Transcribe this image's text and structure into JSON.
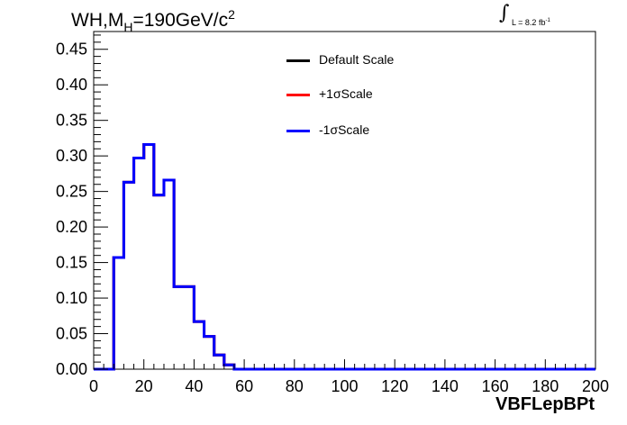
{
  "title": {
    "main": "WH,M",
    "sub": "H",
    "rest": "=190GeV/c",
    "sup": "2"
  },
  "lumi": {
    "symbol": "∫",
    "text": "L = 8.2 fb",
    "sup": "-1"
  },
  "legend": {
    "items": [
      {
        "label": "Default Scale",
        "color": "#000000"
      },
      {
        "label": "+1σScale",
        "color": "#ff0000"
      },
      {
        "label": "-1σScale",
        "color": "#0000ff"
      }
    ]
  },
  "chart_data": {
    "type": "line",
    "xlabel": "VBFLepBPt",
    "ylabel": "",
    "xlim": [
      0,
      200
    ],
    "ylim": [
      0,
      0.475
    ],
    "xticks": [
      "0",
      "20",
      "40",
      "60",
      "80",
      "100",
      "120",
      "140",
      "160",
      "180",
      "200"
    ],
    "yticks": [
      "0.00",
      "0.05",
      "0.10",
      "0.15",
      "0.20",
      "0.25",
      "0.30",
      "0.35",
      "0.40",
      "0.45"
    ],
    "bin_edges": [
      0,
      4,
      8,
      12,
      16,
      20,
      24,
      28,
      32,
      36,
      40,
      44,
      48,
      52,
      56,
      200
    ],
    "series": [
      {
        "name": "Default Scale",
        "color": "#000000",
        "values": [
          0,
          0,
          0.157,
          0.263,
          0.297,
          0.316,
          0.245,
          0.266,
          0.116,
          0.116,
          0.067,
          0.046,
          0.02,
          0.006,
          0
        ]
      },
      {
        "name": "+1σScale",
        "color": "#ff0000",
        "values": [
          0,
          0,
          0.157,
          0.263,
          0.297,
          0.316,
          0.245,
          0.266,
          0.116,
          0.116,
          0.067,
          0.046,
          0.02,
          0.006,
          0
        ]
      },
      {
        "name": "-1σScale",
        "color": "#0000ff",
        "values": [
          0,
          0,
          0.157,
          0.263,
          0.297,
          0.316,
          0.245,
          0.266,
          0.116,
          0.116,
          0.067,
          0.046,
          0.02,
          0.006,
          0
        ]
      }
    ]
  }
}
